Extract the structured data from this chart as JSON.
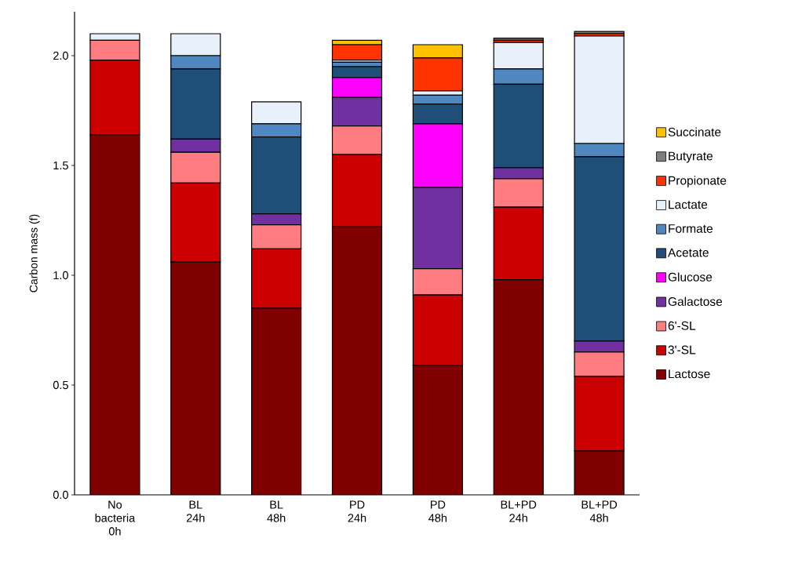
{
  "chart_data": {
    "type": "bar",
    "stacked": true,
    "ylabel": "Carbon mass (f)",
    "categories": [
      "No bacteria 0h",
      "BL 24h",
      "BL 48h",
      "PD 24h",
      "PD 48h",
      "BL+PD 24h",
      "BL+PD 48h"
    ],
    "ylim": [
      0,
      2.2
    ],
    "yticks": [
      {
        "value": 0,
        "label": "0.0"
      },
      0.5,
      {
        "value": 1,
        "label": "1.0"
      },
      1.5,
      {
        "value": 2,
        "label": "2.0"
      }
    ],
    "legend": "right",
    "series": [
      {
        "name": "Lactose",
        "color": "#800000",
        "values": [
          1.64,
          1.06,
          0.85,
          1.22,
          0.59,
          0.98,
          0.2
        ]
      },
      {
        "name": "3'-SL",
        "color": "#cc0000",
        "values": [
          0.34,
          0.36,
          0.27,
          0.33,
          0.32,
          0.33,
          0.34
        ]
      },
      {
        "name": "6'-SL",
        "color": "#ff7c80",
        "values": [
          0.09,
          0.14,
          0.11,
          0.13,
          0.12,
          0.13,
          0.11
        ]
      },
      {
        "name": "Galactose",
        "color": "#7030a0",
        "values": [
          0,
          0.06,
          0.05,
          0.13,
          0.37,
          0.05,
          0.05
        ]
      },
      {
        "name": "Glucose",
        "color": "#ff00ff",
        "values": [
          0,
          0,
          0,
          0.09,
          0.29,
          0,
          0
        ]
      },
      {
        "name": "Acetate",
        "color": "#1f4e79",
        "values": [
          0,
          0.32,
          0.35,
          0.05,
          0.09,
          0.38,
          0.84
        ]
      },
      {
        "name": "Formate",
        "color": "#4f88c0",
        "values": [
          0,
          0.06,
          0.06,
          0.02,
          0.04,
          0.07,
          0.06
        ]
      },
      {
        "name": "Lactate",
        "color": "#e8f0fa",
        "values": [
          0.03,
          0.1,
          0.1,
          0.01,
          0.02,
          0.12,
          0.49
        ]
      },
      {
        "name": "Propionate",
        "color": "#ff3300",
        "values": [
          0,
          0,
          0,
          0.07,
          0.15,
          0.01,
          0.01
        ]
      },
      {
        "name": "Butyrate",
        "color": "#7f7f7f",
        "values": [
          0,
          0,
          0,
          0,
          0,
          0.01,
          0.01
        ]
      },
      {
        "name": "Succinate",
        "color": "#ffc000",
        "values": [
          0,
          0,
          0,
          0.02,
          0.06,
          0,
          0
        ]
      }
    ]
  }
}
